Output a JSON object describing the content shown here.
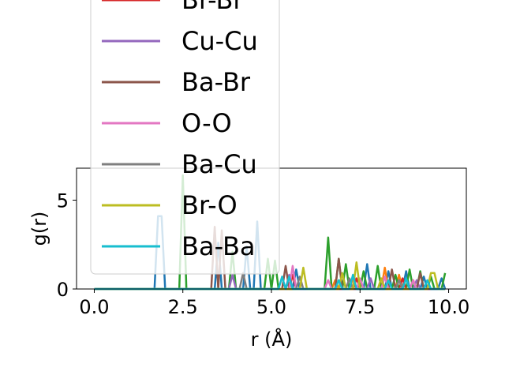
{
  "chart_data": {
    "type": "line",
    "xlabel": "r (Å)",
    "ylabel": "g(r)",
    "xlim": [
      -0.5,
      10.5
    ],
    "ylim": [
      0,
      6.8
    ],
    "xticks": [
      0.0,
      2.5,
      5.0,
      7.5,
      10.0
    ],
    "xtick_labels": [
      "0.0",
      "2.5",
      "5.0",
      "7.5",
      "10.0"
    ],
    "yticks": [
      0,
      5
    ],
    "ytick_labels": [
      "0",
      "5"
    ],
    "legend_position": "upper-left (overflowing plot area)",
    "series": [
      {
        "name": "",
        "color": "#1f77b4",
        "peaks": [
          [
            1.85,
            4.1
          ],
          [
            3.5,
            2.6
          ],
          [
            4.3,
            2.4
          ],
          [
            4.6,
            3.8
          ],
          [
            5.7,
            1.1
          ],
          [
            7.0,
            0.9
          ],
          [
            7.7,
            1.4
          ],
          [
            8.3,
            1.0
          ],
          [
            8.8,
            1.0
          ],
          [
            9.3,
            0.7
          ],
          [
            9.8,
            0.6
          ]
        ]
      },
      {
        "name": "",
        "color": "#ff7f0e",
        "peaks": [
          [
            6.8,
            0.5
          ],
          [
            7.3,
            0.6
          ],
          [
            8.2,
            1.2
          ],
          [
            8.6,
            0.8
          ],
          [
            9.0,
            0.5
          ]
        ]
      },
      {
        "name": "",
        "color": "#2ca02c",
        "peaks": [
          [
            2.5,
            6.4
          ],
          [
            3.9,
            2.1
          ],
          [
            4.9,
            1.7
          ],
          [
            5.1,
            1.6
          ],
          [
            6.6,
            2.9
          ],
          [
            6.9,
            1.7
          ],
          [
            7.1,
            1.4
          ],
          [
            7.6,
            1.0
          ],
          [
            8.0,
            1.3
          ],
          [
            8.5,
            0.8
          ],
          [
            8.9,
            1.1
          ],
          [
            9.2,
            1.0
          ],
          [
            9.5,
            0.7
          ],
          [
            9.9,
            0.9
          ]
        ]
      },
      {
        "name": "Br-Br",
        "color": "#d62728",
        "peaks": [
          [
            5.6,
            0.8
          ],
          [
            7.4,
            0.6
          ],
          [
            8.7,
            0.6
          ]
        ]
      },
      {
        "name": "Cu-Cu",
        "color": "#9467bd",
        "peaks": [
          [
            3.9,
            0.8
          ],
          [
            5.5,
            0.8
          ],
          [
            7.8,
            0.6
          ],
          [
            9.1,
            0.5
          ]
        ]
      },
      {
        "name": "Ba-Br",
        "color": "#8c564b",
        "peaks": [
          [
            3.4,
            3.5
          ],
          [
            3.6,
            3.3
          ],
          [
            5.4,
            1.3
          ],
          [
            6.9,
            1.7
          ],
          [
            8.4,
            1.1
          ],
          [
            9.2,
            0.9
          ]
        ]
      },
      {
        "name": "O-O",
        "color": "#e377c2",
        "peaks": [
          [
            5.6,
            1.3
          ],
          [
            6.6,
            0.5
          ],
          [
            7.5,
            0.6
          ],
          [
            8.2,
            0.7
          ],
          [
            9.0,
            0.5
          ]
        ]
      },
      {
        "name": "Ba-Cu",
        "color": "#7f7f7f",
        "peaks": [
          [
            4.2,
            0.9
          ],
          [
            5.8,
            0.7
          ],
          [
            7.2,
            0.6
          ],
          [
            8.6,
            0.5
          ]
        ]
      },
      {
        "name": "Br-O",
        "color": "#bcbd22",
        "peaks": [
          [
            5.9,
            1.2
          ],
          [
            7.0,
            0.9
          ],
          [
            7.4,
            1.5
          ],
          [
            8.1,
            0.6
          ],
          [
            9.5,
            0.9
          ],
          [
            9.6,
            0.9
          ]
        ]
      },
      {
        "name": "Ba-Ba",
        "color": "#17becf",
        "peaks": [
          [
            5.3,
            0.7
          ],
          [
            5.5,
            0.7
          ],
          [
            6.9,
            0.5
          ],
          [
            7.3,
            0.8
          ],
          [
            8.3,
            0.5
          ],
          [
            8.8,
            0.6
          ],
          [
            9.4,
            0.5
          ]
        ]
      }
    ]
  }
}
